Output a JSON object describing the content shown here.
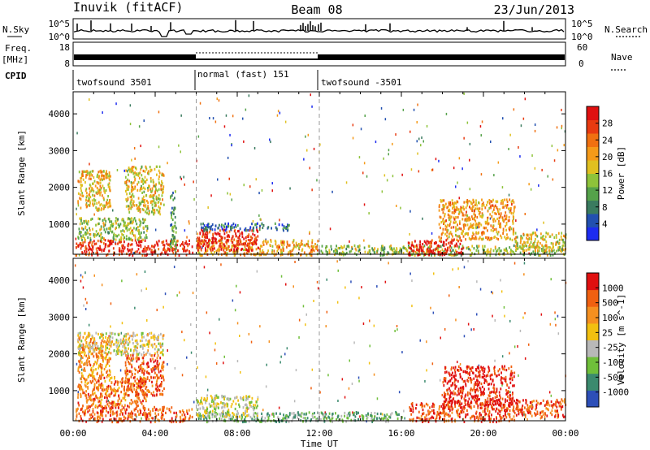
{
  "header": {
    "station": "Inuvik (fitACF)",
    "beam": "Beam 08",
    "date": "23/Jun/2013"
  },
  "top_panels": {
    "nsky_label": "N.Sky",
    "nsky_ticks": [
      "10^5",
      "10^0"
    ],
    "nsearch_label": "N.Search",
    "nsearch_ticks": [
      "10^5",
      "10^0"
    ],
    "freq_label": "Freq.",
    "freq_unit": "[MHz]",
    "freq_ticks": [
      "18",
      "8"
    ],
    "nave_label": "Nave",
    "nave_ticks": [
      "60",
      "0"
    ],
    "cpid_label": "CPID",
    "cpid_segments": [
      {
        "label": "twofsound 3501",
        "start_h": 0,
        "end_h": 6
      },
      {
        "label": "normal (fast) 151",
        "start_h": 6,
        "end_h": 12
      },
      {
        "label": "twofsound -3501",
        "start_h": 12,
        "end_h": 24
      }
    ]
  },
  "chart_data": [
    {
      "type": "heatmap",
      "title": "Power",
      "xlabel": "",
      "ylabel": "Slant Range [km]",
      "x_ticks": [
        "00:00",
        "04:00",
        "08:00",
        "12:00",
        "16:00",
        "20:00",
        "00:00"
      ],
      "xlim_hours": [
        0,
        24
      ],
      "y_ticks": [
        1000,
        2000,
        3000,
        4000
      ],
      "ylim_km": [
        180,
        4600
      ],
      "colorbar_label": "Power [dB]",
      "colorbar_ticks": [
        4,
        8,
        12,
        16,
        20,
        24,
        28
      ],
      "colorbar_colors": [
        "#1d2cf0",
        "#2250b0",
        "#3a7b5f",
        "#55a24a",
        "#8ec33a",
        "#e0c020",
        "#f59a18",
        "#f07010",
        "#e83a10",
        "#e01010"
      ],
      "regions": [
        {
          "t0": 0.1,
          "t1": 5.8,
          "r0": 180,
          "r1": 600,
          "level": 0.9
        },
        {
          "t0": 0.2,
          "t1": 3.6,
          "r0": 600,
          "r1": 1200,
          "level": 0.45
        },
        {
          "t0": 0.2,
          "t1": 1.8,
          "r0": 1400,
          "r1": 2500,
          "level": 0.6
        },
        {
          "t0": 2.5,
          "t1": 4.4,
          "r0": 1300,
          "r1": 2600,
          "level": 0.55
        },
        {
          "t0": 4.7,
          "t1": 5.0,
          "r0": 300,
          "r1": 2000,
          "level": 0.35
        },
        {
          "t0": 6.0,
          "t1": 11.9,
          "r0": 180,
          "r1": 600,
          "level": 0.65
        },
        {
          "t0": 6.0,
          "t1": 9.0,
          "r0": 300,
          "r1": 900,
          "level": 0.9
        },
        {
          "t0": 6.2,
          "t1": 10.5,
          "r0": 850,
          "r1": 1050,
          "level": 0.2
        },
        {
          "t0": 12.0,
          "t1": 24.0,
          "r0": 180,
          "r1": 450,
          "level": 0.45
        },
        {
          "t0": 16.3,
          "t1": 19.0,
          "r0": 180,
          "r1": 600,
          "level": 0.95
        },
        {
          "t0": 17.8,
          "t1": 21.5,
          "r0": 600,
          "r1": 1700,
          "level": 0.65
        },
        {
          "t0": 21.5,
          "t1": 24.0,
          "r0": 300,
          "r1": 800,
          "level": 0.55
        }
      ]
    },
    {
      "type": "heatmap",
      "title": "Velocity",
      "xlabel": "Time UT",
      "ylabel": "Slant Range [km]",
      "x_ticks": [
        "00:00",
        "04:00",
        "08:00",
        "12:00",
        "16:00",
        "20:00",
        "00:00"
      ],
      "xlim_hours": [
        0,
        24
      ],
      "y_ticks": [
        1000,
        2000,
        3000,
        4000
      ],
      "ylim_km": [
        180,
        4600
      ],
      "colorbar_label": "Velocity [m s^-1]",
      "colorbar_ticks": [
        "1000",
        "500",
        "100",
        "25",
        "-25",
        "-100",
        "-500",
        "-1000"
      ],
      "colorbar_colors": [
        "#2d4fb8",
        "#3b8a6e",
        "#6fbf3a",
        "#b8b8b8",
        "#f2c010",
        "#f59020",
        "#f06010",
        "#e01010"
      ],
      "regions": [
        {
          "t0": 0.1,
          "t1": 5.8,
          "r0": 180,
          "r1": 600,
          "level": 0.8
        },
        {
          "t0": 0.2,
          "t1": 3.6,
          "r0": 600,
          "r1": 1400,
          "level": 0.75
        },
        {
          "t0": 0.2,
          "t1": 1.8,
          "r0": 1400,
          "r1": 2500,
          "level": 0.7
        },
        {
          "t0": 0.2,
          "t1": 4.4,
          "r0": 2000,
          "r1": 2600,
          "level": 0.5
        },
        {
          "t0": 2.5,
          "t1": 4.4,
          "r0": 900,
          "r1": 2000,
          "level": 0.8
        },
        {
          "t0": 6.0,
          "t1": 11.9,
          "r0": 180,
          "r1": 450,
          "level": 0.3
        },
        {
          "t0": 6.0,
          "t1": 9.0,
          "r0": 300,
          "r1": 900,
          "level": 0.45
        },
        {
          "t0": 12.0,
          "t1": 16.0,
          "r0": 180,
          "r1": 450,
          "level": 0.3
        },
        {
          "t0": 16.3,
          "t1": 21.5,
          "r0": 180,
          "r1": 700,
          "level": 0.85
        },
        {
          "t0": 18.0,
          "t1": 21.5,
          "r0": 600,
          "r1": 1700,
          "level": 0.95
        },
        {
          "t0": 21.5,
          "t1": 24.0,
          "r0": 300,
          "r1": 800,
          "level": 0.85
        }
      ]
    }
  ]
}
